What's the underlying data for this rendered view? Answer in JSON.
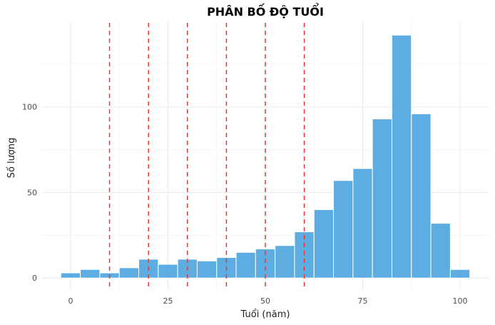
{
  "chart_data": {
    "type": "bar",
    "title": "PHÂN BỐ ĐỘ TUỔI",
    "xlabel": "Tuổi (năm)",
    "ylabel": "Số lượng",
    "bin_width": 5,
    "bins": [
      {
        "center": 0,
        "count": 3
      },
      {
        "center": 5,
        "count": 5
      },
      {
        "center": 10,
        "count": 3
      },
      {
        "center": 15,
        "count": 6
      },
      {
        "center": 20,
        "count": 11
      },
      {
        "center": 25,
        "count": 8
      },
      {
        "center": 30,
        "count": 11
      },
      {
        "center": 35,
        "count": 10
      },
      {
        "center": 40,
        "count": 12
      },
      {
        "center": 45,
        "count": 15
      },
      {
        "center": 50,
        "count": 17
      },
      {
        "center": 55,
        "count": 19
      },
      {
        "center": 60,
        "count": 27
      },
      {
        "center": 65,
        "count": 40
      },
      {
        "center": 70,
        "count": 57
      },
      {
        "center": 75,
        "count": 64
      },
      {
        "center": 80,
        "count": 93
      },
      {
        "center": 85,
        "count": 142
      },
      {
        "center": 90,
        "count": 96
      },
      {
        "center": 95,
        "count": 32
      },
      {
        "center": 100,
        "count": 5
      }
    ],
    "reference_lines_x": [
      10,
      20,
      30,
      40,
      50,
      60
    ],
    "xlim": [
      -7.5,
      107.5
    ],
    "ylim": [
      -7,
      150
    ],
    "x_ticks": [
      "0",
      "25",
      "50",
      "75",
      "100"
    ],
    "y_ticks": [
      "0",
      "50",
      "100"
    ],
    "grid": true,
    "colors": {
      "bar": "#5dade2",
      "reference_line": "#e53935"
    }
  }
}
